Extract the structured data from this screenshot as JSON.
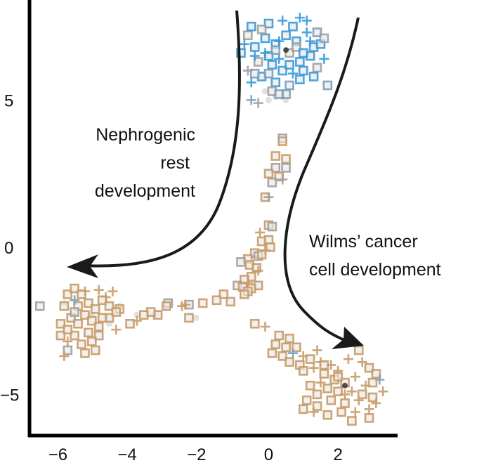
{
  "chart_data": {
    "type": "scatter",
    "title": "",
    "xlabel": "",
    "ylabel": "",
    "xlim": [
      -6.9,
      3.7
    ],
    "ylim": [
      -6.4,
      8.4
    ],
    "grid": false,
    "x_ticks": [
      -6,
      -4,
      -2,
      0,
      2
    ],
    "x_tick_labels": [
      "−6",
      "−4",
      "−2",
      "0",
      "2"
    ],
    "y_ticks": [
      5,
      0,
      -5
    ],
    "y_tick_labels": [
      "5",
      "0",
      "−5"
    ],
    "colors": {
      "b": "#3a9ad9",
      "sb": "#7c9dbd",
      "g": "#a0a0a0",
      "t": "#c89b67",
      "l": "#dddddd",
      "d": "#2a2a2a"
    },
    "markers": {
      "s": "square",
      "p": "plus",
      "l": "dot",
      "d": "dot"
    },
    "annotations": [
      {
        "lines": [
          "Nephrogenic",
          "rest",
          "development"
        ],
        "align": "right"
      },
      {
        "lines": [
          "Wilms’ cancer",
          "cell development"
        ],
        "align": "left"
      }
    ],
    "points": [
      [
        0.5,
        7.2,
        "s",
        "b"
      ],
      [
        0.8,
        7.0,
        "s",
        "b"
      ],
      [
        1.1,
        7.3,
        "p",
        "b"
      ],
      [
        1.3,
        6.8,
        "s",
        "b"
      ],
      [
        0.2,
        6.9,
        "s",
        "b"
      ],
      [
        -0.1,
        7.1,
        "s",
        "b"
      ],
      [
        -0.4,
        6.8,
        "s",
        "b"
      ],
      [
        -0.6,
        7.2,
        "s",
        "g"
      ],
      [
        -0.8,
        6.6,
        "s",
        "b"
      ],
      [
        0.0,
        6.5,
        "s",
        "b"
      ],
      [
        0.3,
        6.4,
        "p",
        "b"
      ],
      [
        0.6,
        6.6,
        "s",
        "g"
      ],
      [
        0.9,
        6.3,
        "s",
        "b"
      ],
      [
        1.2,
        6.5,
        "s",
        "b"
      ],
      [
        1.5,
        6.9,
        "s",
        "b"
      ],
      [
        1.6,
        6.4,
        "p",
        "b"
      ],
      [
        1.4,
        6.1,
        "s",
        "g"
      ],
      [
        1.0,
        6.0,
        "s",
        "b"
      ],
      [
        0.7,
        5.9,
        "p",
        "b"
      ],
      [
        0.4,
        6.0,
        "s",
        "b"
      ],
      [
        0.1,
        6.2,
        "s",
        "b"
      ],
      [
        -0.3,
        6.3,
        "s",
        "g"
      ],
      [
        -0.6,
        6.0,
        "p",
        "g"
      ],
      [
        -0.2,
        5.8,
        "s",
        "b"
      ],
      [
        0.2,
        5.6,
        "s",
        "b"
      ],
      [
        0.6,
        5.5,
        "s",
        "sb"
      ],
      [
        0.9,
        5.7,
        "s",
        "b"
      ],
      [
        1.3,
        5.8,
        "s",
        "b"
      ],
      [
        1.7,
        5.5,
        "s",
        "sb"
      ],
      [
        0.5,
        5.2,
        "s",
        "sb"
      ],
      [
        0.1,
        5.3,
        "s",
        "g"
      ],
      [
        0.3,
        5.2,
        "s",
        "sb"
      ],
      [
        -0.5,
        5.0,
        "p",
        "sb"
      ],
      [
        -0.3,
        4.9,
        "p",
        "g"
      ],
      [
        0.0,
        7.6,
        "s",
        "b"
      ],
      [
        0.4,
        7.7,
        "p",
        "b"
      ],
      [
        0.9,
        7.8,
        "p",
        "b"
      ],
      [
        1.1,
        7.7,
        "p",
        "b"
      ],
      [
        -0.5,
        7.5,
        "s",
        "b"
      ],
      [
        -0.2,
        7.4,
        "s",
        "g"
      ],
      [
        0.7,
        7.5,
        "s",
        "b"
      ],
      [
        1.4,
        7.3,
        "s",
        "sb"
      ],
      [
        1.6,
        7.1,
        "s",
        "g"
      ],
      [
        0.3,
        7.0,
        "p",
        "b"
      ],
      [
        -0.7,
        6.9,
        "p",
        "b"
      ],
      [
        -0.4,
        6.5,
        "p",
        "b"
      ],
      [
        0.8,
        6.8,
        "s",
        "g"
      ],
      [
        1.0,
        6.6,
        "s",
        "b"
      ],
      [
        0.2,
        6.7,
        "s",
        "sb"
      ],
      [
        -0.1,
        6.6,
        "p",
        "b"
      ],
      [
        1.2,
        7.0,
        "p",
        "b"
      ],
      [
        0.6,
        6.2,
        "s",
        "b"
      ],
      [
        -0.5,
        5.6,
        "p",
        "b"
      ],
      [
        -0.4,
        5.9,
        "s",
        "sb"
      ],
      [
        0.0,
        5.9,
        "s",
        "sb"
      ],
      [
        0.0,
        5.0,
        "l",
        "l"
      ],
      [
        0.2,
        5.1,
        "l",
        "l"
      ],
      [
        -0.1,
        5.3,
        "l",
        "l"
      ],
      [
        0.5,
        5.0,
        "l",
        "l"
      ],
      [
        0.4,
        5.1,
        "l",
        "l"
      ],
      [
        0.4,
        3.7,
        "s",
        "g"
      ],
      [
        0.4,
        3.6,
        "s",
        "t"
      ],
      [
        0.2,
        3.1,
        "s",
        "t"
      ],
      [
        0.5,
        3.0,
        "s",
        "t"
      ],
      [
        0.2,
        2.7,
        "s",
        "g"
      ],
      [
        0.5,
        2.7,
        "s",
        "g"
      ],
      [
        0.0,
        2.5,
        "s",
        "t"
      ],
      [
        0.3,
        2.4,
        "s",
        "t"
      ],
      [
        0.1,
        2.2,
        "s",
        "g"
      ],
      [
        0.4,
        2.3,
        "p",
        "g"
      ],
      [
        -0.1,
        1.7,
        "s",
        "t"
      ],
      [
        0.0,
        1.7,
        "p",
        "g"
      ],
      [
        -0.25,
        0.5,
        "p",
        "t"
      ],
      [
        0.0,
        0.75,
        "s",
        "t"
      ],
      [
        0.1,
        0.7,
        "s",
        "g"
      ],
      [
        -0.2,
        0.2,
        "s",
        "t"
      ],
      [
        0.0,
        0.25,
        "s",
        "t"
      ],
      [
        0.05,
        0.0,
        "s",
        "t"
      ],
      [
        -0.1,
        -0.1,
        "p",
        "t"
      ],
      [
        -0.4,
        -0.2,
        "s",
        "t"
      ],
      [
        -0.3,
        -0.3,
        "s",
        "g"
      ],
      [
        -0.2,
        -0.25,
        "s",
        "t"
      ],
      [
        -0.6,
        -0.4,
        "s",
        "t"
      ],
      [
        -0.8,
        -0.5,
        "s",
        "g"
      ],
      [
        -0.55,
        -0.6,
        "s",
        "t"
      ],
      [
        -0.35,
        -0.7,
        "s",
        "t"
      ],
      [
        -0.3,
        -0.8,
        "p",
        "t"
      ],
      [
        -0.5,
        -1.0,
        "s",
        "t"
      ],
      [
        -0.7,
        -1.1,
        "s",
        "t"
      ],
      [
        -0.3,
        -1.3,
        "s",
        "t"
      ],
      [
        -0.5,
        -1.4,
        "s",
        "t"
      ],
      [
        -0.9,
        -1.3,
        "s",
        "g"
      ],
      [
        -0.75,
        -1.35,
        "s",
        "t"
      ],
      [
        -0.6,
        -1.5,
        "s",
        "t"
      ],
      [
        -0.7,
        -1.6,
        "s",
        "t"
      ],
      [
        -1.1,
        -1.85,
        "s",
        "t"
      ],
      [
        -1.3,
        -1.6,
        "s",
        "t"
      ],
      [
        -0.6,
        -1.2,
        "p",
        "t"
      ],
      [
        -1.5,
        -1.8,
        "s",
        "t"
      ],
      [
        -1.9,
        -1.9,
        "s",
        "t"
      ],
      [
        -2.3,
        -1.95,
        "s",
        "g"
      ],
      [
        -2.4,
        -1.95,
        "p",
        "t"
      ],
      [
        -2.5,
        -2.0,
        "p",
        "t"
      ],
      [
        -2.3,
        -2.4,
        "s",
        "t"
      ],
      [
        -2.9,
        -1.9,
        "s",
        "g"
      ],
      [
        -2.95,
        -2.0,
        "s",
        "t"
      ],
      [
        -3.2,
        -2.3,
        "s",
        "t"
      ],
      [
        -3.4,
        -2.2,
        "s",
        "t"
      ],
      [
        -3.6,
        -2.3,
        "s",
        "t"
      ],
      [
        -3.8,
        -2.5,
        "p",
        "t"
      ],
      [
        -4.0,
        -2.6,
        "s",
        "t"
      ],
      [
        -4.6,
        -2.4,
        "s",
        "t"
      ],
      [
        -4.3,
        -2.1,
        "s",
        "t"
      ],
      [
        -3.3,
        -2.3,
        "l",
        "l"
      ],
      [
        -2.1,
        -2.4,
        "l",
        "l"
      ],
      [
        -3.8,
        -2.3,
        "l",
        "l"
      ],
      [
        -6.6,
        -2.0,
        "s",
        "g"
      ],
      [
        -5.8,
        -1.6,
        "s",
        "t"
      ],
      [
        -5.6,
        -1.4,
        "s",
        "t"
      ],
      [
        -5.3,
        -1.5,
        "p",
        "t"
      ],
      [
        -4.9,
        -1.45,
        "p",
        "t"
      ],
      [
        -4.5,
        -1.5,
        "p",
        "t"
      ],
      [
        -4.7,
        -1.7,
        "p",
        "t"
      ],
      [
        -4.8,
        -1.8,
        "s",
        "t"
      ],
      [
        -5.9,
        -2.0,
        "s",
        "t"
      ],
      [
        -5.5,
        -2.0,
        "s",
        "t"
      ],
      [
        -5.2,
        -1.9,
        "s",
        "t"
      ],
      [
        -5.0,
        -2.1,
        "s",
        "t"
      ],
      [
        -4.6,
        -2.0,
        "s",
        "t"
      ],
      [
        -4.4,
        -2.2,
        "s",
        "t"
      ],
      [
        -5.6,
        -1.8,
        "p",
        "sb"
      ],
      [
        -5.4,
        -1.6,
        "s",
        "t"
      ],
      [
        -5.3,
        -2.3,
        "s",
        "t"
      ],
      [
        -5.7,
        -2.4,
        "s",
        "t"
      ],
      [
        -6.0,
        -2.6,
        "s",
        "t"
      ],
      [
        -5.5,
        -2.6,
        "s",
        "t"
      ],
      [
        -5.1,
        -2.5,
        "s",
        "t"
      ],
      [
        -4.8,
        -2.4,
        "s",
        "t"
      ],
      [
        -4.9,
        -2.7,
        "s",
        "t"
      ],
      [
        -6.0,
        -3.0,
        "s",
        "t"
      ],
      [
        -5.6,
        -3.0,
        "s",
        "t"
      ],
      [
        -5.2,
        -2.9,
        "s",
        "t"
      ],
      [
        -4.9,
        -3.0,
        "s",
        "t"
      ],
      [
        -5.8,
        -3.2,
        "p",
        "t"
      ],
      [
        -5.4,
        -3.3,
        "s",
        "t"
      ],
      [
        -5.1,
        -3.2,
        "s",
        "t"
      ],
      [
        -5.8,
        -3.5,
        "s",
        "g"
      ],
      [
        -5.3,
        -3.6,
        "s",
        "t"
      ],
      [
        -5.0,
        -3.5,
        "s",
        "t"
      ],
      [
        -5.9,
        -3.7,
        "p",
        "t"
      ],
      [
        -4.4,
        -2.8,
        "p",
        "t"
      ],
      [
        -5.6,
        -2.2,
        "s",
        "g"
      ],
      [
        -5.8,
        -2.8,
        "s",
        "t"
      ],
      [
        -5.1,
        -2.3,
        "l",
        "l"
      ],
      [
        -4.6,
        -2.6,
        "l",
        "l"
      ],
      [
        -4.3,
        -2.0,
        "l",
        "l"
      ],
      [
        -5.9,
        -1.9,
        "l",
        "l"
      ],
      [
        -0.4,
        -2.6,
        "s",
        "t"
      ],
      [
        -0.1,
        -2.7,
        "p",
        "t"
      ],
      [
        0.3,
        -3.0,
        "s",
        "t"
      ],
      [
        0.6,
        -3.1,
        "s",
        "t"
      ],
      [
        0.2,
        -3.3,
        "s",
        "t"
      ],
      [
        0.5,
        -3.4,
        "s",
        "t"
      ],
      [
        0.8,
        -3.4,
        "s",
        "t"
      ],
      [
        0.1,
        -3.6,
        "s",
        "t"
      ],
      [
        0.4,
        -3.7,
        "s",
        "t"
      ],
      [
        0.7,
        -3.6,
        "p",
        "sb"
      ],
      [
        1.0,
        -3.7,
        "p",
        "t"
      ],
      [
        1.4,
        -3.5,
        "p",
        "t"
      ],
      [
        1.2,
        -3.8,
        "s",
        "t"
      ],
      [
        1.5,
        -3.9,
        "p",
        "t"
      ],
      [
        0.6,
        -3.9,
        "s",
        "t"
      ],
      [
        0.9,
        -4.0,
        "s",
        "t"
      ],
      [
        1.0,
        -4.2,
        "s",
        "t"
      ],
      [
        1.3,
        -4.1,
        "p",
        "t"
      ],
      [
        1.6,
        -4.3,
        "s",
        "t"
      ],
      [
        1.8,
        -4.0,
        "p",
        "t"
      ],
      [
        2.0,
        -4.2,
        "p",
        "t"
      ],
      [
        2.3,
        -3.8,
        "p",
        "t"
      ],
      [
        2.6,
        -3.5,
        "s",
        "t"
      ],
      [
        2.7,
        -3.9,
        "p",
        "t"
      ],
      [
        2.9,
        -4.1,
        "s",
        "t"
      ],
      [
        3.1,
        -4.3,
        "s",
        "t"
      ],
      [
        2.5,
        -4.4,
        "p",
        "t"
      ],
      [
        2.2,
        -4.6,
        "s",
        "t"
      ],
      [
        1.9,
        -4.5,
        "s",
        "t"
      ],
      [
        1.5,
        -4.6,
        "p",
        "t"
      ],
      [
        1.2,
        -4.7,
        "s",
        "t"
      ],
      [
        1.7,
        -4.8,
        "s",
        "t"
      ],
      [
        2.0,
        -4.9,
        "s",
        "t"
      ],
      [
        2.4,
        -4.9,
        "p",
        "t"
      ],
      [
        2.8,
        -4.7,
        "p",
        "t"
      ],
      [
        3.2,
        -4.5,
        "p",
        "sb"
      ],
      [
        3.3,
        -4.9,
        "p",
        "t"
      ],
      [
        3.0,
        -5.1,
        "s",
        "t"
      ],
      [
        2.6,
        -5.2,
        "p",
        "t"
      ],
      [
        2.2,
        -5.3,
        "s",
        "t"
      ],
      [
        1.8,
        -5.2,
        "s",
        "t"
      ],
      [
        1.4,
        -5.4,
        "s",
        "t"
      ],
      [
        1.1,
        -5.2,
        "s",
        "t"
      ],
      [
        1.3,
        -5.6,
        "p",
        "t"
      ],
      [
        1.7,
        -5.7,
        "s",
        "t"
      ],
      [
        2.1,
        -5.6,
        "s",
        "t"
      ],
      [
        2.5,
        -5.6,
        "p",
        "t"
      ],
      [
        2.9,
        -5.5,
        "p",
        "t"
      ],
      [
        3.1,
        -5.3,
        "p",
        "t"
      ],
      [
        2.9,
        -5.8,
        "s",
        "t"
      ],
      [
        2.4,
        -5.9,
        "s",
        "t"
      ],
      [
        1.0,
        -5.5,
        "s",
        "t"
      ],
      [
        2.0,
        -4.4,
        "s",
        "t"
      ],
      [
        1.6,
        -4.0,
        "s",
        "t"
      ],
      [
        3.0,
        -4.6,
        "s",
        "t"
      ],
      [
        2.7,
        -5.0,
        "s",
        "t"
      ],
      [
        2.2,
        -5.0,
        "p",
        "t"
      ],
      [
        1.4,
        -5.0,
        "s",
        "t"
      ],
      [
        2.2,
        -4.7,
        "d",
        "d"
      ],
      [
        0.5,
        6.7,
        "d",
        "d"
      ]
    ]
  }
}
